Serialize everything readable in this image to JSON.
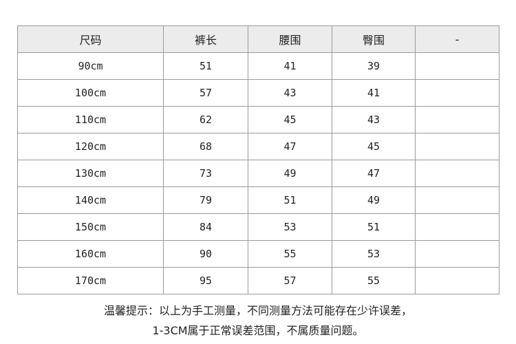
{
  "table": {
    "headers": [
      "尺码",
      "裤长",
      "腰围",
      "臀围",
      "-"
    ],
    "rows": [
      [
        "90cm",
        "51",
        "41",
        "39",
        ""
      ],
      [
        "100cm",
        "57",
        "43",
        "41",
        ""
      ],
      [
        "110cm",
        "62",
        "45",
        "43",
        ""
      ],
      [
        "120cm",
        "68",
        "47",
        "45",
        ""
      ],
      [
        "130cm",
        "73",
        "49",
        "47",
        ""
      ],
      [
        "140cm",
        "79",
        "51",
        "49",
        ""
      ],
      [
        "150cm",
        "84",
        "53",
        "51",
        ""
      ],
      [
        "160cm",
        "90",
        "55",
        "53",
        ""
      ],
      [
        "170cm",
        "95",
        "57",
        "55",
        ""
      ]
    ]
  },
  "note": {
    "line1": "温馨提示：以上为手工测量，不同测量方法可能存在少许误差，",
    "line2": "1-3CM属于正常误差范围，不属质量问题。"
  },
  "colors": {
    "header_bg": "#ececec",
    "border": "#9a9a9a"
  }
}
